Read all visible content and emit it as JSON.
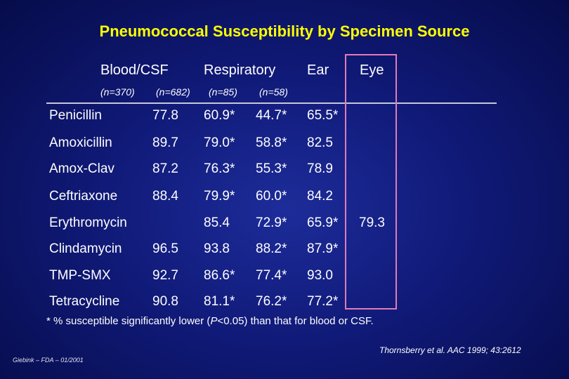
{
  "title": "Pneumococcal Susceptibility by Specimen Source",
  "columns": [
    {
      "label": "Blood/CSF",
      "n": "(n=370)"
    },
    {
      "label": "Respiratory",
      "n": "(n=682)"
    },
    {
      "label": "Ear",
      "n": "(n=85)"
    },
    {
      "label": "Eye",
      "n": "(n=58)"
    }
  ],
  "rows": [
    {
      "drug": "Penicillin",
      "values": [
        "77.8",
        "60.9*",
        "44.7*",
        "65.5*"
      ]
    },
    {
      "drug": "Amoxicillin",
      "values": [
        "89.7",
        "79.0*",
        "58.8*",
        "82.5"
      ]
    },
    {
      "drug": "Amox-Clav",
      "values": [
        "87.2",
        "76.3*",
        "55.3*",
        "78.9"
      ]
    },
    {
      "drug": "Ceftriaxone",
      "values": [
        "88.4",
        "79.9*",
        "60.0*",
        "84.2"
      ]
    },
    {
      "drug": "Erythromycin",
      "values": [
        "85.4",
        "72.9*",
        "65.9*",
        "79.3"
      ]
    },
    {
      "drug": "Clindamycin",
      "values": [
        "96.5",
        "93.8",
        "88.2*",
        "87.9*"
      ]
    },
    {
      "drug": "TMP-SMX",
      "values": [
        "92.7",
        "86.6*",
        "77.4*",
        "93.0"
      ]
    },
    {
      "drug": "Tetracycline",
      "values": [
        "90.8",
        "81.1*",
        "76.2*",
        "77.2*"
      ]
    }
  ],
  "footnote": {
    "prefix": "* % susceptible significantly lower (",
    "p": "P",
    "suffix": "<0.05) than that for blood or CSF."
  },
  "credit_left": "Giebink – FDA – 01/2001",
  "credit_right": "Thornsberry et al. AAC 1999; 43:2612",
  "colors": {
    "background": "#101a78",
    "title": "#ffff00",
    "highlight_box": "#e47ab6"
  }
}
